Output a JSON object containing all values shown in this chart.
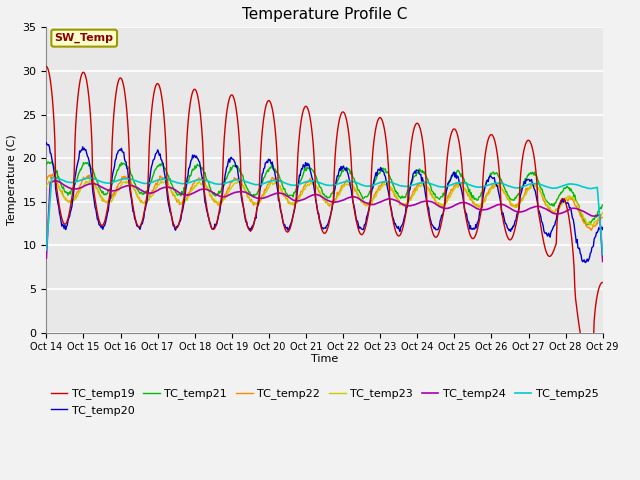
{
  "title": "Temperature Profile C",
  "xlabel": "Time",
  "ylabel": "Temperature (C)",
  "ylim": [
    0,
    35
  ],
  "series_colors": {
    "TC_temp19": "#cc0000",
    "TC_temp20": "#0000cc",
    "TC_temp21": "#00bb00",
    "TC_temp22": "#ff8800",
    "TC_temp23": "#cccc00",
    "TC_temp24": "#aa00aa",
    "TC_temp25": "#00cccc"
  },
  "annotation_text": "SW_Temp",
  "fig_bg": "#f2f2f2",
  "plot_bg": "#e8e8e8"
}
